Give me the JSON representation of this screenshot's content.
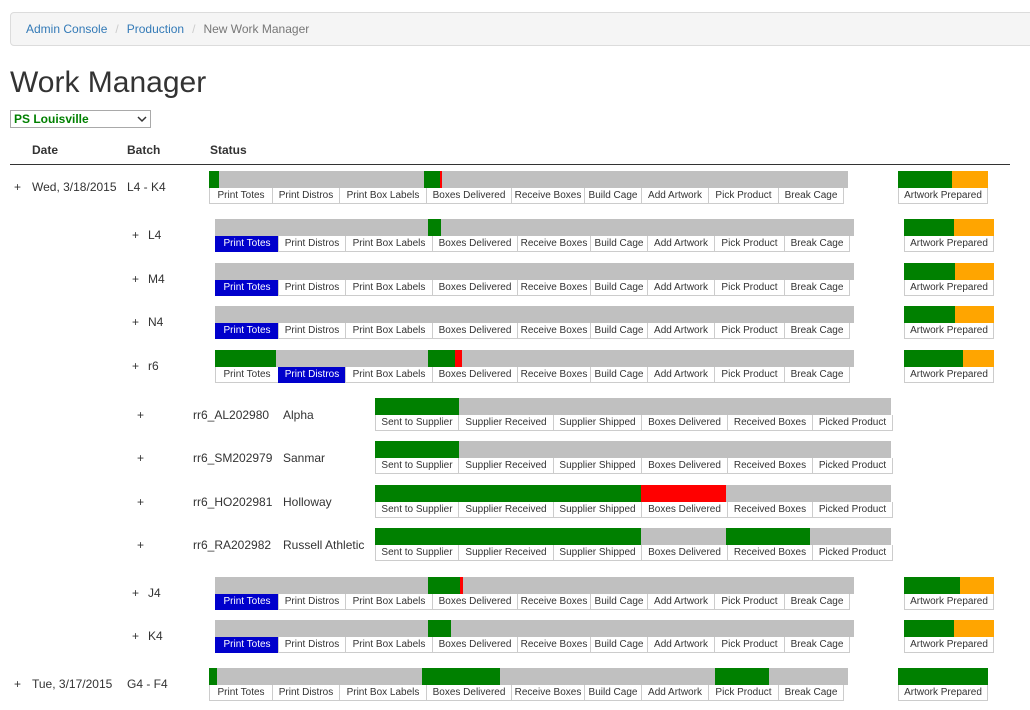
{
  "breadcrumb": {
    "items": [
      "Admin Console",
      "Production"
    ],
    "active": "New Work Manager"
  },
  "page_title": "Work Manager",
  "location_select": {
    "selected": "PS Louisville"
  },
  "table_headers": {
    "date": "Date",
    "batch": "Batch",
    "status": "Status"
  },
  "colors": {
    "complete": "#008000",
    "pending": "#c0c0c0",
    "late": "#ff0000",
    "prepared": "#ffa500",
    "active_stage": "#0000cc"
  },
  "batch_stages": [
    "Print Totes",
    "Print Distros",
    "Print Box Labels",
    "Boxes Delivered",
    "Receive Boxes",
    "Build Cage",
    "Add Artwork",
    "Pick Product",
    "Break Cage"
  ],
  "supplier_stages": [
    "Sent to Supplier",
    "Supplier Received",
    "Supplier Shipped",
    "Boxes Delivered",
    "Received Boxes",
    "Picked Product"
  ],
  "artwork_label": "Artwork Prepared",
  "rows": [
    {
      "kind": "date",
      "toggle": "+",
      "date": "Wed, 3/18/2015",
      "batch": "L4 - K4",
      "fills": [
        [
          "green",
          0,
          0.016
        ],
        [
          "green",
          0.336,
          0.361
        ],
        [
          "red",
          0.361,
          0.365
        ]
      ],
      "active": -1,
      "art": 0.6
    },
    {
      "kind": "batch",
      "toggle": "+",
      "batch": "L4",
      "fills": [
        [
          "green",
          0.334,
          0.354
        ]
      ],
      "active": 0,
      "art": 0.56
    },
    {
      "kind": "batch",
      "toggle": "+",
      "batch": "M4",
      "fills": [],
      "active": 0,
      "art": 0.57
    },
    {
      "kind": "batch",
      "toggle": "+",
      "batch": "N4",
      "fills": [],
      "active": 0,
      "art": 0.57
    },
    {
      "kind": "batch",
      "toggle": "+",
      "batch": "r6",
      "fills": [
        [
          "green",
          0,
          0.095
        ],
        [
          "green",
          0.334,
          0.376
        ],
        [
          "red",
          0.376,
          0.387
        ]
      ],
      "active": 1,
      "art": 0.65
    },
    {
      "kind": "supplier",
      "toggle": "+",
      "code": "rr6_AL202980",
      "name": "Alpha",
      "fills": [
        [
          "green",
          0,
          0.163
        ]
      ]
    },
    {
      "kind": "supplier",
      "toggle": "+",
      "code": "rr6_SM202979",
      "name": "Sanmar",
      "fills": [
        [
          "green",
          0,
          0.163
        ]
      ]
    },
    {
      "kind": "supplier",
      "toggle": "+",
      "code": "rr6_HO202981",
      "name": "Holloway",
      "fills": [
        [
          "green",
          0,
          0.516
        ],
        [
          "red",
          0.516,
          0.68
        ]
      ]
    },
    {
      "kind": "supplier",
      "toggle": "+",
      "code": "rr6_RA202982",
      "name": "Russell Athletic",
      "fills": [
        [
          "green",
          0,
          0.516
        ],
        [
          "green",
          0.68,
          0.844
        ]
      ]
    },
    {
      "kind": "batch",
      "toggle": "+",
      "batch": "J4",
      "fills": [
        [
          "green",
          0.334,
          0.384
        ],
        [
          "red",
          0.384,
          0.388
        ]
      ],
      "active": 0,
      "art": 0.62
    },
    {
      "kind": "batch",
      "toggle": "+",
      "batch": "K4",
      "fills": [
        [
          "green",
          0.334,
          0.37
        ]
      ],
      "active": 0,
      "art": 0.55
    },
    {
      "kind": "date",
      "toggle": "+",
      "date": "Tue, 3/17/2015",
      "batch": "G4 - F4",
      "fills": [
        [
          "green",
          0,
          0.013
        ],
        [
          "green",
          0.334,
          0.456
        ],
        [
          "green",
          0.792,
          0.876
        ]
      ],
      "active": -1,
      "art": 1.0
    }
  ]
}
